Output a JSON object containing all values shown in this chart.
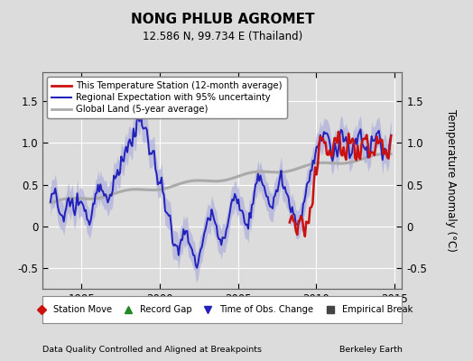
{
  "title": "NONG PHLUB AGROMET",
  "subtitle": "12.586 N, 99.734 E (Thailand)",
  "ylabel": "Temperature Anomaly (°C)",
  "footer_left": "Data Quality Controlled and Aligned at Breakpoints",
  "footer_right": "Berkeley Earth",
  "xlim": [
    1992.5,
    2015.5
  ],
  "ylim": [
    -0.75,
    1.85
  ],
  "yticks": [
    -0.5,
    0,
    0.5,
    1.0,
    1.5
  ],
  "xticks": [
    1995,
    2000,
    2005,
    2010,
    2015
  ],
  "bg_color": "#dcdcdc",
  "regional_color": "#2222bb",
  "regional_fill_color": "#aaaadd",
  "station_color": "#cc1111",
  "global_color": "#aaaaaa",
  "legend1_items": [
    {
      "label": "This Temperature Station (12-month average)",
      "color": "#cc1111",
      "lw": 2.0
    },
    {
      "label": "Regional Expectation with 95% uncertainty",
      "color": "#2222bb",
      "lw": 1.5
    },
    {
      "label": "Global Land (5-year average)",
      "color": "#aaaaaa",
      "lw": 2.0
    }
  ],
  "legend2_items": [
    {
      "label": "Station Move",
      "marker": "D",
      "color": "#cc1111"
    },
    {
      "label": "Record Gap",
      "marker": "^",
      "color": "#228822"
    },
    {
      "label": "Time of Obs. Change",
      "marker": "v",
      "color": "#2222bb"
    },
    {
      "label": "Empirical Break",
      "marker": "s",
      "color": "#444444"
    }
  ]
}
